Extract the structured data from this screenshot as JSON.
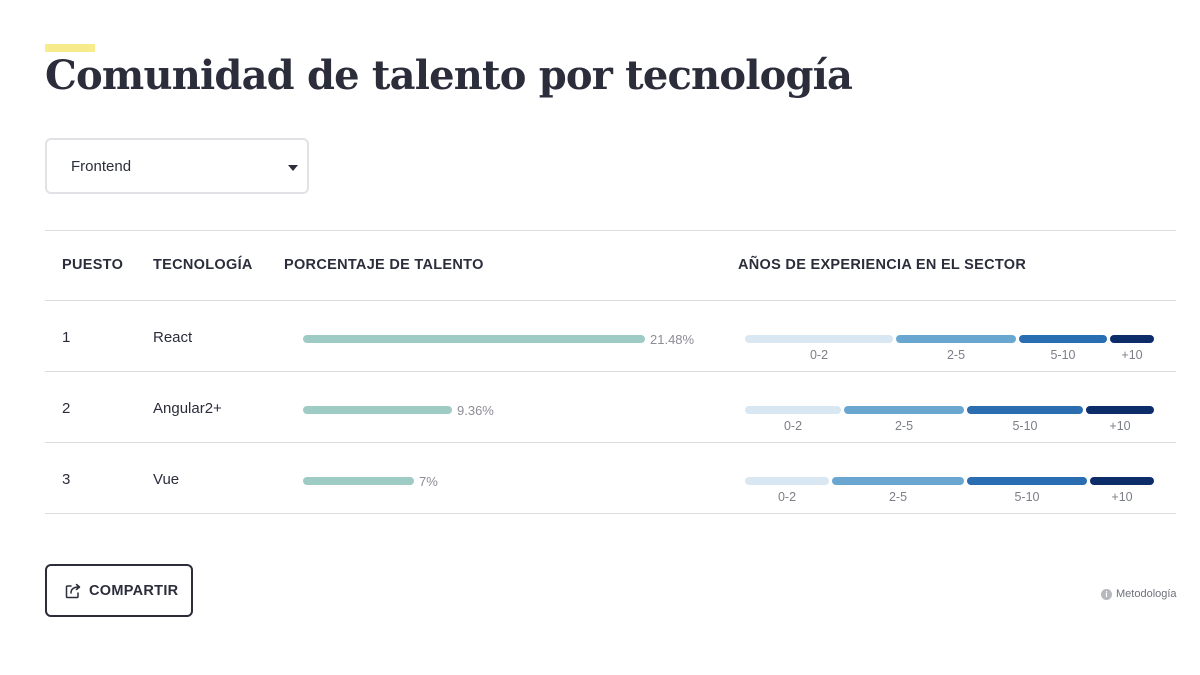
{
  "page": {
    "title": "Comunidad de talento por tecnología",
    "accent_color": "#f7ec8c"
  },
  "filter": {
    "selected": "Frontend"
  },
  "table": {
    "headers": {
      "rank": "PUESTO",
      "technology": "TECNOLOGÍA",
      "talent": "PORCENTAJE DE TALENTO",
      "experience": "AÑOS DE EXPERIENCIA EN EL SECTOR"
    },
    "experience_ranges": [
      "0-2",
      "2-5",
      "5-10",
      "+10"
    ],
    "experience_colors": [
      "#d9e7f3",
      "#6aa7d0",
      "#2a6db0",
      "#0c2c6a"
    ],
    "talent_color": "#9ecbc4",
    "rows": [
      {
        "rank": "1",
        "technology": "React",
        "talent_pct": 21.48,
        "talent_label": "21.48%",
        "experience_pct": [
          37,
          30,
          22,
          11
        ]
      },
      {
        "rank": "2",
        "technology": "Angular2+",
        "talent_pct": 9.36,
        "talent_label": "9.36%",
        "experience_pct": [
          24,
          30,
          29,
          17
        ]
      },
      {
        "rank": "3",
        "technology": "Vue",
        "talent_pct": 7,
        "talent_label": "7%",
        "experience_pct": [
          21,
          33,
          30,
          16
        ]
      }
    ]
  },
  "actions": {
    "share_label": "COMPARTIR",
    "methodology_label": "Metodología"
  },
  "icons": {
    "caret": "caret-down-icon",
    "share": "share-icon",
    "info": "info-icon"
  }
}
